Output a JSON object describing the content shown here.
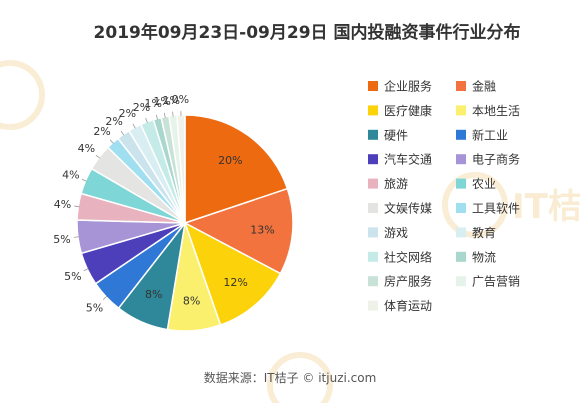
{
  "chart_data": {
    "type": "pie",
    "title": "2019年09月23日-09月29日 国内投融资事件行业分布",
    "categories": [
      "企业服务",
      "金融",
      "医疗健康",
      "本地生活",
      "硬件",
      "新工业",
      "汽车交通",
      "电子商务",
      "旅游",
      "农业",
      "文娱传媒",
      "工具软件",
      "游戏",
      "教育",
      "社交网络",
      "物流",
      "房产服务",
      "广告营销",
      "体育运动"
    ],
    "values": [
      20,
      13,
      12,
      8,
      8,
      5,
      5,
      5,
      4,
      4,
      4,
      2,
      2,
      2,
      2,
      1,
      1,
      1,
      0
    ],
    "labels": [
      "20%",
      "13%",
      "12%",
      "8%",
      "8%",
      "5%",
      "5%",
      "5%",
      "4%",
      "4%",
      "4%",
      "2%",
      "2%",
      "2%",
      "2%",
      "1%",
      "1%",
      "1%",
      "0%"
    ],
    "colors": [
      "#ee6a10",
      "#f2733e",
      "#fcd30a",
      "#fbf06e",
      "#2e8899",
      "#3078d6",
      "#4d3fb9",
      "#a794d6",
      "#e8b2be",
      "#7ed6d6",
      "#e4e4e2",
      "#a0dff0",
      "#cbe3ed",
      "#d8eef2",
      "#c4ebe8",
      "#a9d7cd",
      "#c9e2d8",
      "#e6f3ea",
      "#eef2e8"
    ],
    "legend_placement": "right"
  },
  "footer": "数据来源：IT桔子 © itjuzi.com",
  "watermark": "IT桔子"
}
